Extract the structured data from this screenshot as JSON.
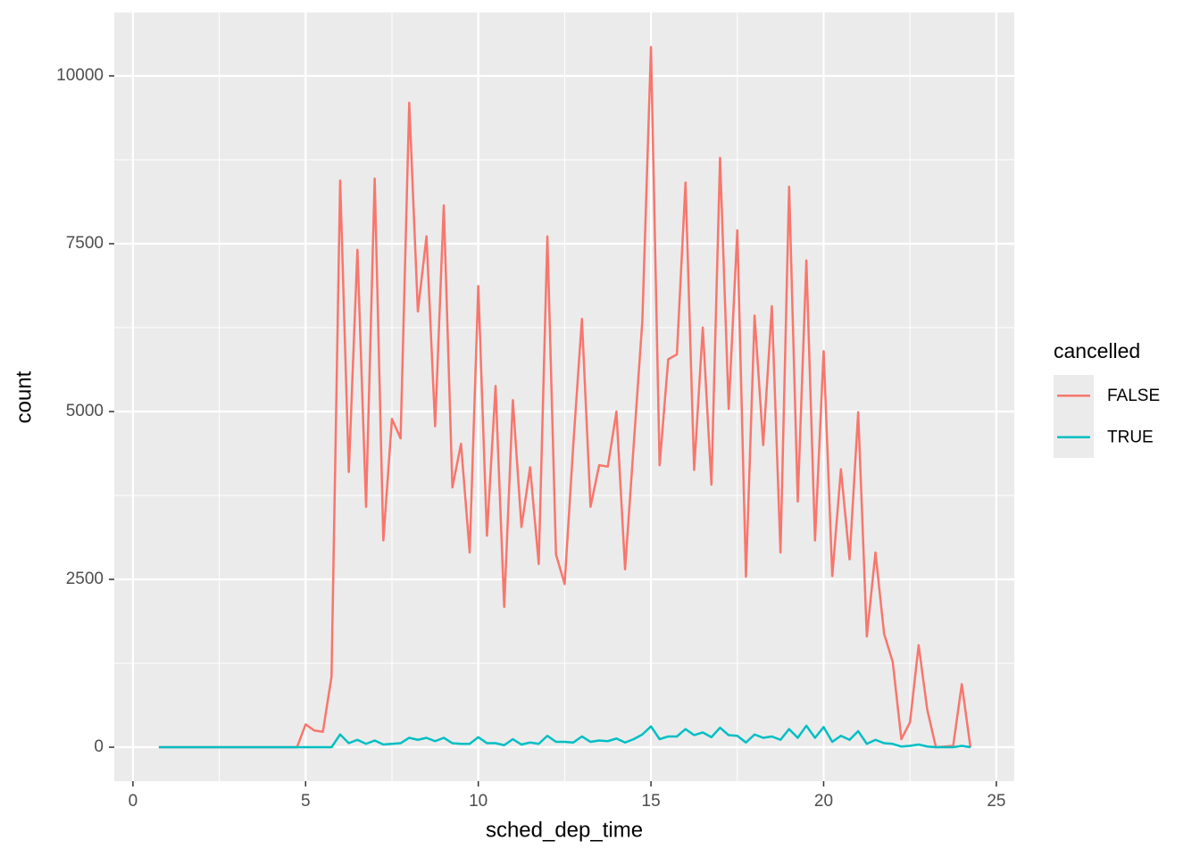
{
  "chart_data": {
    "type": "line",
    "x_label": "sched_dep_time",
    "y_label": "count",
    "legend_title": "cancelled",
    "legend_position": "right",
    "grid": true,
    "xlim": [
      -0.54,
      25.52
    ],
    "ylim": [
      -505,
      10944
    ],
    "xticks": [
      0,
      5,
      10,
      15,
      20,
      25
    ],
    "yticks": [
      0,
      2500,
      5000,
      7500,
      10000
    ],
    "x": [
      0.75,
      1,
      1.25,
      1.5,
      1.75,
      2,
      2.25,
      2.5,
      2.75,
      3,
      3.25,
      3.5,
      3.75,
      4,
      4.25,
      4.5,
      4.75,
      5,
      5.25,
      5.5,
      5.75,
      6,
      6.25,
      6.5,
      6.75,
      7,
      7.25,
      7.5,
      7.75,
      8,
      8.25,
      8.5,
      8.75,
      9,
      9.25,
      9.5,
      9.75,
      10,
      10.25,
      10.5,
      10.75,
      11,
      11.25,
      11.5,
      11.75,
      12,
      12.25,
      12.5,
      12.75,
      13,
      13.25,
      13.5,
      13.75,
      14,
      14.25,
      14.5,
      14.75,
      15,
      15.25,
      15.5,
      15.75,
      16,
      16.25,
      16.5,
      16.75,
      17,
      17.25,
      17.5,
      17.75,
      18,
      18.25,
      18.5,
      18.75,
      19,
      19.25,
      19.5,
      19.75,
      20,
      20.25,
      20.5,
      20.75,
      21,
      21.25,
      21.5,
      21.75,
      22,
      22.25,
      22.5,
      22.75,
      23,
      23.25,
      23.5,
      23.75,
      24,
      24.25
    ],
    "series": [
      {
        "name": "FALSE",
        "color": "#F8766D",
        "values": [
          0,
          0,
          0,
          0,
          0,
          0,
          0,
          0,
          0,
          0,
          0,
          0,
          0,
          0,
          0,
          0,
          0,
          340,
          250,
          230,
          1050,
          8440,
          4100,
          7410,
          3580,
          8470,
          3080,
          4890,
          4600,
          9600,
          6490,
          7610,
          4780,
          8070,
          3870,
          4520,
          2900,
          6870,
          3150,
          5380,
          2090,
          5170,
          3280,
          4170,
          2730,
          7610,
          2870,
          2430,
          4500,
          6380,
          3580,
          4200,
          4180,
          5000,
          2650,
          4500,
          6350,
          10430,
          4200,
          5780,
          5850,
          8410,
          4130,
          6250,
          3910,
          8780,
          5040,
          7700,
          2540,
          6430,
          4500,
          6570,
          2900,
          8350,
          3660,
          7250,
          3080,
          5900,
          2550,
          4140,
          2800,
          4990,
          1650,
          2900,
          1690,
          1270,
          120,
          370,
          1520,
          560,
          0,
          10,
          20,
          940,
          0
        ]
      },
      {
        "name": "TRUE",
        "color": "#00BFC4",
        "values": [
          0,
          0,
          0,
          0,
          0,
          0,
          0,
          0,
          0,
          0,
          0,
          0,
          0,
          0,
          0,
          0,
          0,
          0,
          0,
          0,
          0,
          190,
          60,
          110,
          50,
          100,
          40,
          50,
          60,
          140,
          110,
          140,
          90,
          140,
          60,
          50,
          50,
          150,
          60,
          60,
          30,
          120,
          40,
          70,
          50,
          170,
          80,
          80,
          70,
          160,
          80,
          100,
          90,
          130,
          70,
          120,
          190,
          310,
          120,
          160,
          160,
          270,
          180,
          220,
          150,
          290,
          180,
          170,
          70,
          190,
          140,
          160,
          110,
          270,
          140,
          320,
          140,
          300,
          80,
          170,
          110,
          240,
          50,
          110,
          60,
          50,
          10,
          20,
          40,
          10,
          0,
          0,
          0,
          20,
          0
        ]
      }
    ]
  }
}
